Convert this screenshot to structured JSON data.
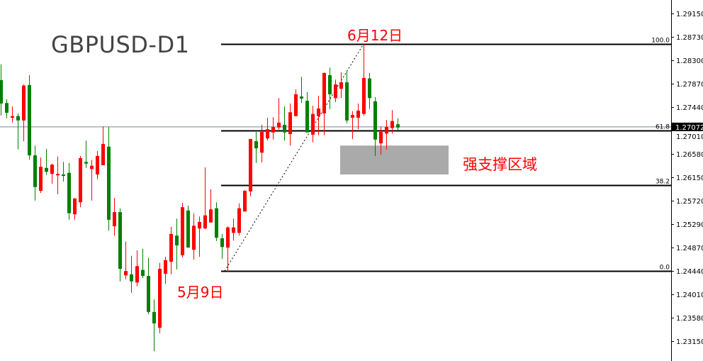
{
  "title": "GBPUSD-D1",
  "annotations": {
    "high_date": "6月12日",
    "low_date": "5月9日",
    "zone_label": "强支撑区域"
  },
  "colors": {
    "up": "#ff0000",
    "down": "#008000",
    "zone": "#aaaaaa",
    "price_line": "#7a8290",
    "fib": "#000000"
  },
  "chart_data": {
    "type": "candlestick",
    "title": "GBPUSD-D1",
    "ylim": [
      1.229,
      1.294
    ],
    "y_ticks": [
      "1.29150",
      "1.28730",
      "1.28300",
      "1.27870",
      "1.27440",
      "1.27010",
      "1.26580",
      "1.26150",
      "1.25720",
      "1.25290",
      "1.24870",
      "1.24440",
      "1.24010",
      "1.23580",
      "1.23150"
    ],
    "last_price": "1.27072",
    "ohlc": [
      [
        1.2793,
        1.2822,
        1.2728,
        1.275
      ],
      [
        1.2751,
        1.2758,
        1.2723,
        1.2733
      ],
      [
        1.2724,
        1.2745,
        1.2715,
        1.2727
      ],
      [
        1.2727,
        1.2732,
        1.2666,
        1.2719
      ],
      [
        1.2719,
        1.2785,
        1.2681,
        1.2783
      ],
      [
        1.2784,
        1.2802,
        1.2647,
        1.2655
      ],
      [
        1.2655,
        1.2673,
        1.2572,
        1.2597
      ],
      [
        1.259,
        1.2651,
        1.2586,
        1.2634
      ],
      [
        1.2632,
        1.2667,
        1.2619,
        1.2625
      ],
      [
        1.2621,
        1.264,
        1.2603,
        1.2638
      ],
      [
        1.2619,
        1.2653,
        1.2584,
        1.2621
      ],
      [
        1.262,
        1.2643,
        1.2607,
        1.2619
      ],
      [
        1.2623,
        1.2641,
        1.2537,
        1.2549
      ],
      [
        1.2547,
        1.2577,
        1.2537,
        1.2576
      ],
      [
        1.2569,
        1.2654,
        1.256,
        1.265
      ],
      [
        1.2643,
        1.2682,
        1.2632,
        1.264
      ],
      [
        1.263,
        1.2647,
        1.2572,
        1.2636
      ],
      [
        1.262,
        1.2663,
        1.2611,
        1.2654
      ],
      [
        1.2637,
        1.2708,
        1.2637,
        1.2676
      ],
      [
        1.2671,
        1.2707,
        1.2517,
        1.2537
      ],
      [
        1.2525,
        1.2577,
        1.2508,
        1.2551
      ],
      [
        1.2551,
        1.2558,
        1.2424,
        1.2447
      ],
      [
        1.2435,
        1.2497,
        1.2428,
        1.2443
      ],
      [
        1.2437,
        1.2471,
        1.2403,
        1.2424
      ],
      [
        1.2422,
        1.2481,
        1.2415,
        1.2452
      ],
      [
        1.2445,
        1.2484,
        1.243,
        1.2434
      ],
      [
        1.2434,
        1.2467,
        1.2364,
        1.2368
      ],
      [
        1.2368,
        1.2391,
        1.2296,
        1.2347
      ],
      [
        1.2339,
        1.2458,
        1.2329,
        1.2447
      ],
      [
        1.2438,
        1.2469,
        1.242,
        1.2463
      ],
      [
        1.246,
        1.2524,
        1.2437,
        1.2511
      ],
      [
        1.2508,
        1.2539,
        1.2446,
        1.249
      ],
      [
        1.2472,
        1.2568,
        1.2468,
        1.256
      ],
      [
        1.2554,
        1.2563,
        1.2486,
        1.2486
      ],
      [
        1.2482,
        1.2549,
        1.2464,
        1.2526
      ],
      [
        1.2521,
        1.2543,
        1.2469,
        1.2533
      ],
      [
        1.2521,
        1.2633,
        1.252,
        1.2545
      ],
      [
        1.2532,
        1.2593,
        1.2532,
        1.2556
      ],
      [
        1.2558,
        1.2569,
        1.2498,
        1.2504
      ],
      [
        1.2503,
        1.2511,
        1.2465,
        1.2487
      ],
      [
        1.2486,
        1.2525,
        1.2442,
        1.2523
      ],
      [
        1.2513,
        1.2539,
        1.2499,
        1.2523
      ],
      [
        1.2513,
        1.2567,
        1.2508,
        1.2558
      ],
      [
        1.2552,
        1.2591,
        1.2552,
        1.259
      ],
      [
        1.2589,
        1.2685,
        1.258,
        1.2685
      ],
      [
        1.2681,
        1.2698,
        1.2641,
        1.2668
      ],
      [
        1.266,
        1.2711,
        1.2642,
        1.2698
      ],
      [
        1.2686,
        1.2724,
        1.2682,
        1.2703
      ],
      [
        1.2697,
        1.2725,
        1.2684,
        1.2707
      ],
      [
        1.2706,
        1.276,
        1.2702,
        1.2715
      ],
      [
        1.2711,
        1.2745,
        1.2682,
        1.2697
      ],
      [
        1.2694,
        1.275,
        1.2673,
        1.2734
      ],
      [
        1.2727,
        1.2776,
        1.2727,
        1.2767
      ],
      [
        1.2763,
        1.2799,
        1.2751,
        1.2759
      ],
      [
        1.2755,
        1.2771,
        1.2697,
        1.2697
      ],
      [
        1.2693,
        1.2746,
        1.2679,
        1.2731
      ],
      [
        1.2727,
        1.2764,
        1.2692,
        1.2741
      ],
      [
        1.2732,
        1.2807,
        1.2692,
        1.2806
      ],
      [
        1.2802,
        1.2816,
        1.274,
        1.2767
      ],
      [
        1.276,
        1.2794,
        1.2753,
        1.2785
      ],
      [
        1.2777,
        1.2807,
        1.276,
        1.2789
      ],
      [
        1.2789,
        1.281,
        1.2714,
        1.2719
      ],
      [
        1.2724,
        1.2736,
        1.2685,
        1.2729
      ],
      [
        1.2724,
        1.275,
        1.2703,
        1.2737
      ],
      [
        1.2731,
        1.2859,
        1.2728,
        1.2797
      ],
      [
        1.2796,
        1.2806,
        1.274,
        1.276
      ],
      [
        1.2754,
        1.2762,
        1.2654,
        1.2684
      ],
      [
        1.2677,
        1.2708,
        1.2656,
        1.2698
      ],
      [
        1.2695,
        1.272,
        1.2666,
        1.2707
      ],
      [
        1.2705,
        1.2738,
        1.2695,
        1.2718
      ],
      [
        1.2712,
        1.2723,
        1.2701,
        1.2706
      ]
    ],
    "fib_levels": [
      {
        "label": "100.0",
        "price": 1.2859
      },
      {
        "label": "61.8",
        "price": 1.2701
      },
      {
        "label": "38.2",
        "price": 1.26
      },
      {
        "label": "0.0",
        "price": 1.2443
      }
    ],
    "fib_trendline": {
      "from": {
        "candle": 40,
        "price": 1.2443
      },
      "to": {
        "candle": 64,
        "price": 1.2859
      }
    },
    "support_zone": {
      "from_candle": 60,
      "to_candle": 79,
      "price_top": 1.2673,
      "price_bottom": 1.262
    }
  }
}
